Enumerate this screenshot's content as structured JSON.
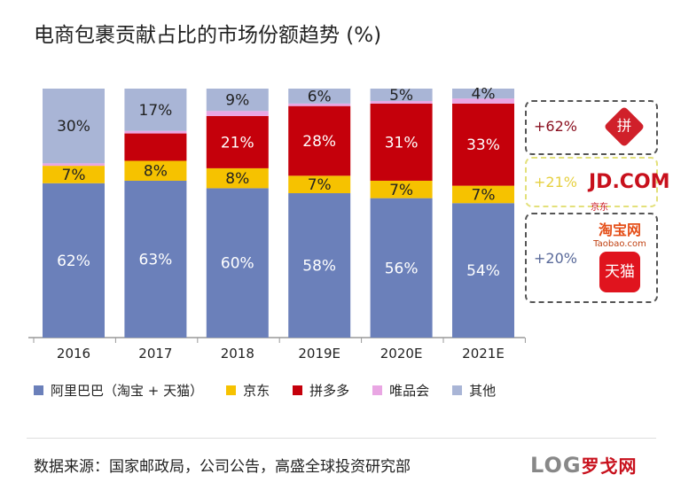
{
  "title": "电商包裹贡献占比的市场份额趋势 (%)",
  "chart_data": {
    "type": "bar",
    "stacked": true,
    "categories": [
      "2016",
      "2017",
      "2018",
      "2019E",
      "2020E",
      "2021E"
    ],
    "ylim": [
      0,
      100
    ],
    "series": [
      {
        "name": "阿里巴巴（淘宝 + 天猫）",
        "color": "#6b80ba",
        "values": [
          62,
          63,
          60,
          58,
          56,
          54
        ],
        "labels": [
          "62%",
          "63%",
          "60%",
          "58%",
          "56%",
          "54%"
        ]
      },
      {
        "name": "京东",
        "color": "#f6c200",
        "values": [
          7,
          8,
          8,
          7,
          7,
          7
        ],
        "labels": [
          "7%",
          "8%",
          "8%",
          "7%",
          "7%",
          "7%"
        ]
      },
      {
        "name": "拼多多",
        "color": "#c5000b",
        "values": [
          0,
          11,
          21,
          28,
          31,
          33
        ],
        "labels": [
          "",
          "",
          "21%",
          "28%",
          "31%",
          "33%"
        ]
      },
      {
        "name": "唯品会",
        "color": "#e9a6e3",
        "values": [
          1,
          1,
          2,
          1,
          1,
          2
        ],
        "labels": [
          "",
          "",
          "",
          "",
          "",
          ""
        ]
      },
      {
        "name": "其他",
        "color": "#a9b5d6",
        "values": [
          30,
          17,
          9,
          6,
          5,
          4
        ],
        "labels": [
          "30%",
          "17%",
          "9%",
          "6%",
          "5%",
          "4%"
        ]
      }
    ]
  },
  "growth": [
    {
      "label": "+62%",
      "color": "#8a1020",
      "border": "#555",
      "logo": "拼"
    },
    {
      "label": "+21%",
      "color": "#e6d040",
      "border": "#e3e07a",
      "logo": "JD.COM",
      "logo_cn": "京东"
    },
    {
      "label": "+20%",
      "color": "#5a6a9a",
      "border": "#555",
      "logo": "淘宝网",
      "logo_sub": "Taobao.com",
      "logo2": "天猫"
    }
  ],
  "source": "数据来源：国家邮政局，公司公告，高盛全球投资研究部",
  "watermark": "LOG罗戈网"
}
